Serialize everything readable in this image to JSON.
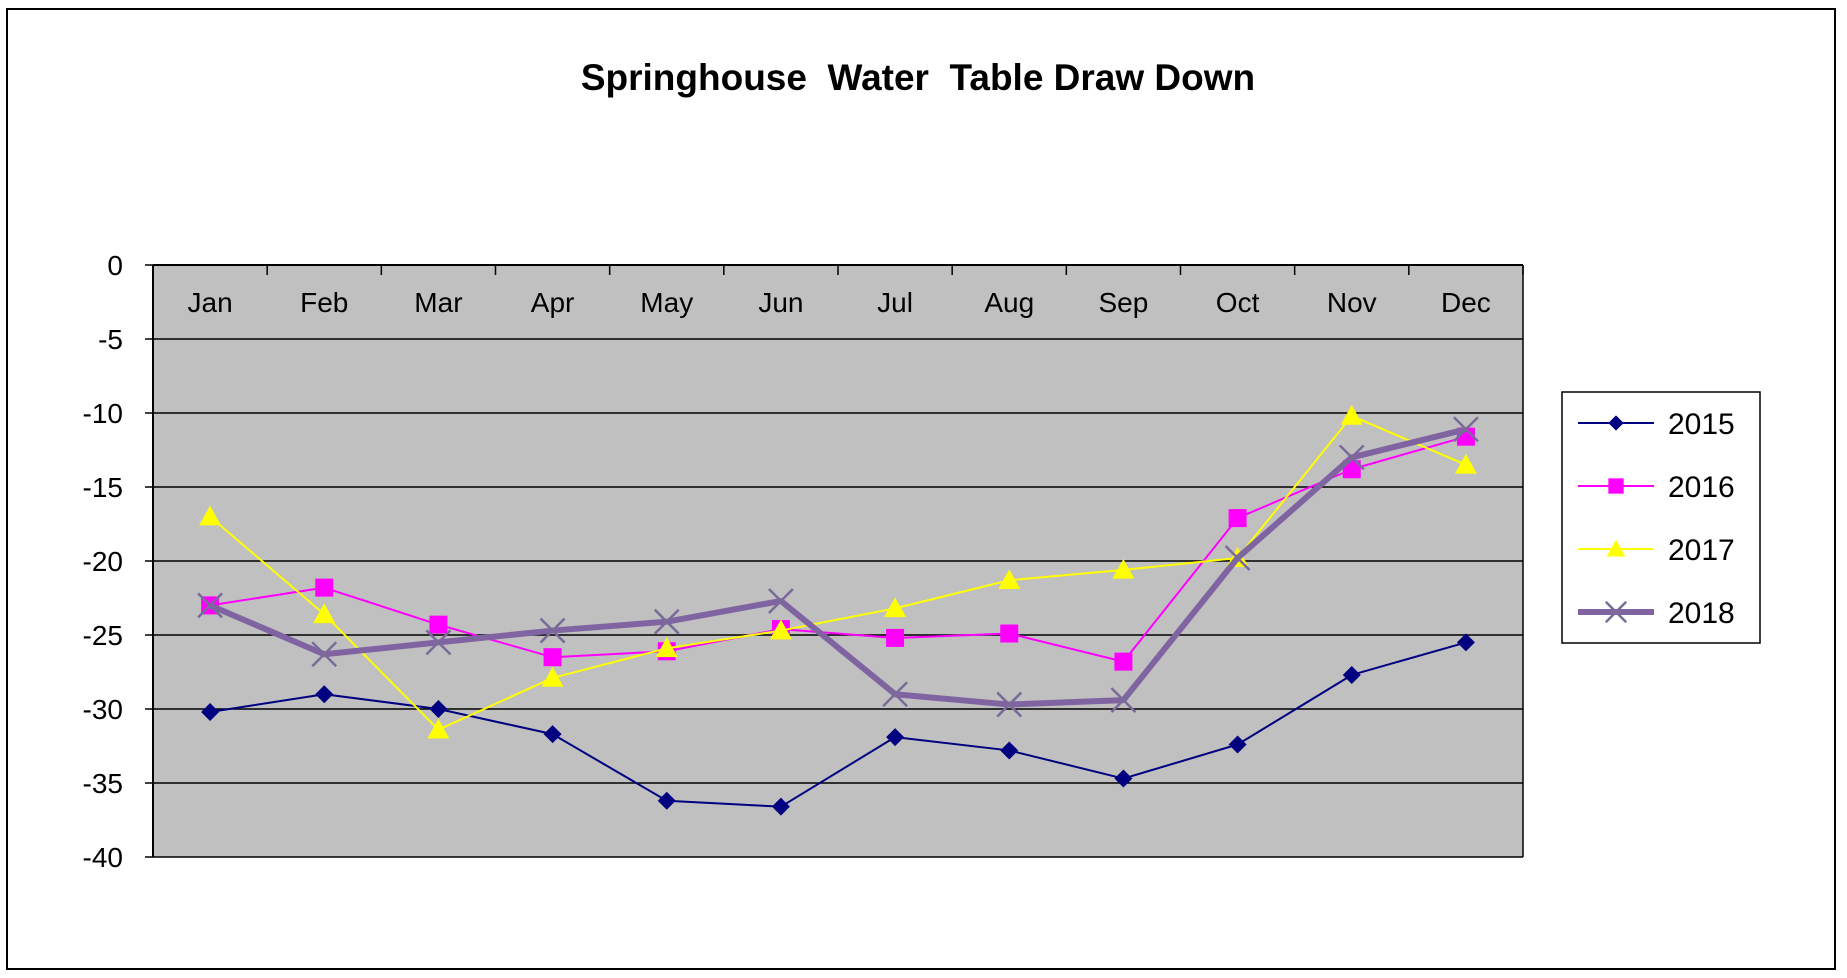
{
  "chart_data": {
    "type": "line",
    "title": "Springhouse  Water  Table Draw Down",
    "xlabel": "",
    "ylabel": "",
    "categories": [
      "Jan",
      "Feb",
      "Mar",
      "Apr",
      "May",
      "Jun",
      "Jul",
      "Aug",
      "Sep",
      "Oct",
      "Nov",
      "Dec"
    ],
    "ylim": [
      -40,
      0
    ],
    "yticks": [
      0,
      -5,
      -10,
      -15,
      -20,
      -25,
      -30,
      -35,
      -40
    ],
    "x_axis_position": "top",
    "grid": true,
    "plot_background": "#c0c0c0",
    "legend_position": "right",
    "series": [
      {
        "name": "2015",
        "color": "#000080",
        "marker": "diamond",
        "line_width": 2,
        "values": [
          -30.2,
          -29.0,
          -30.0,
          -31.7,
          -36.2,
          -36.6,
          -31.9,
          -32.8,
          -34.7,
          -32.4,
          -27.7,
          -25.5
        ]
      },
      {
        "name": "2016",
        "color": "#ff00ff",
        "marker": "square",
        "line_width": 2,
        "values": [
          -23.0,
          -21.8,
          -24.3,
          -26.5,
          -26.1,
          -24.6,
          -25.2,
          -24.9,
          -26.8,
          -17.1,
          -13.8,
          -11.6
        ]
      },
      {
        "name": "2017",
        "color": "#ffff00",
        "marker": "triangle",
        "line_width": 2,
        "values": [
          -17.0,
          -23.6,
          -31.4,
          -27.9,
          -25.9,
          -24.7,
          -23.2,
          -21.3,
          -20.6,
          -19.8,
          -10.2,
          -13.5
        ]
      },
      {
        "name": "2018",
        "color": "#8064a2",
        "marker": "x",
        "line_width": 6,
        "values": [
          -23.0,
          -26.3,
          -25.5,
          -24.7,
          -24.1,
          -22.7,
          -29.0,
          -29.7,
          -29.4,
          -19.8,
          -13.0,
          -11.1
        ]
      }
    ]
  }
}
